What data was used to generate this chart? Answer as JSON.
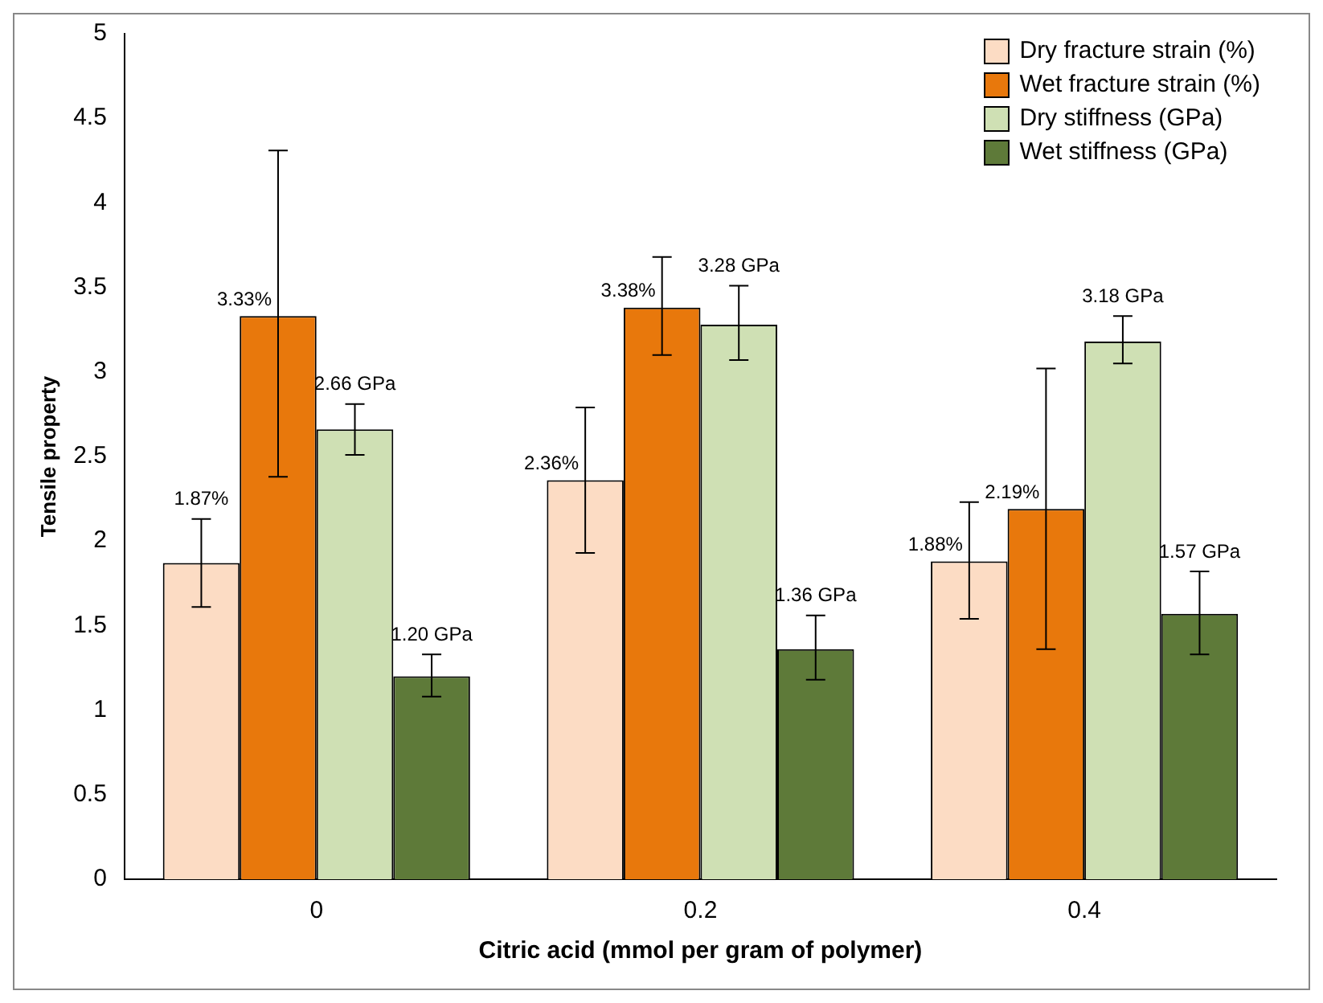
{
  "chart_data": {
    "type": "bar",
    "xlabel": "Citric acid (mmol per gram of polymer)",
    "ylabel": "Tensile property",
    "categories": [
      "0",
      "0.2",
      "0.4"
    ],
    "series": [
      {
        "name": "Dry fracture strain (%)",
        "color": "#fcdcc4",
        "values": [
          1.87,
          2.36,
          1.88
        ],
        "errors": [
          [
            1.61,
            2.13
          ],
          [
            1.93,
            2.79
          ],
          [
            1.54,
            2.23
          ]
        ],
        "value_labels": [
          "1.87%",
          "2.36%",
          "1.88%"
        ]
      },
      {
        "name": "Wet fracture strain (%)",
        "color": "#e8780c",
        "values": [
          3.33,
          3.38,
          2.19
        ],
        "errors": [
          [
            2.38,
            4.31
          ],
          [
            3.1,
            3.68
          ],
          [
            1.36,
            3.02
          ]
        ],
        "value_labels": [
          "3.33%",
          "3.38%",
          "2.19%"
        ]
      },
      {
        "name": "Dry stiffness (GPa)",
        "color": "#cfe0b4",
        "values": [
          2.66,
          3.28,
          3.18
        ],
        "errors": [
          [
            2.51,
            2.81
          ],
          [
            3.07,
            3.51
          ],
          [
            3.05,
            3.33
          ]
        ],
        "value_labels": [
          "2.66 GPa",
          "3.28 GPa",
          "3.18 GPa"
        ]
      },
      {
        "name": "Wet stiffness (GPa)",
        "color": "#5e7a39",
        "values": [
          1.2,
          1.36,
          1.57
        ],
        "errors": [
          [
            1.08,
            1.33
          ],
          [
            1.18,
            1.56
          ],
          [
            1.33,
            1.82
          ]
        ],
        "value_labels": [
          "1.20 GPa",
          "1.36 GPa",
          "1.57 GPa"
        ]
      }
    ],
    "ylim": [
      0,
      5
    ],
    "yticks": [
      0,
      0.5,
      1,
      1.5,
      2,
      2.5,
      3,
      3.5,
      4,
      4.5,
      5
    ],
    "grid": false,
    "legend": "top right"
  }
}
